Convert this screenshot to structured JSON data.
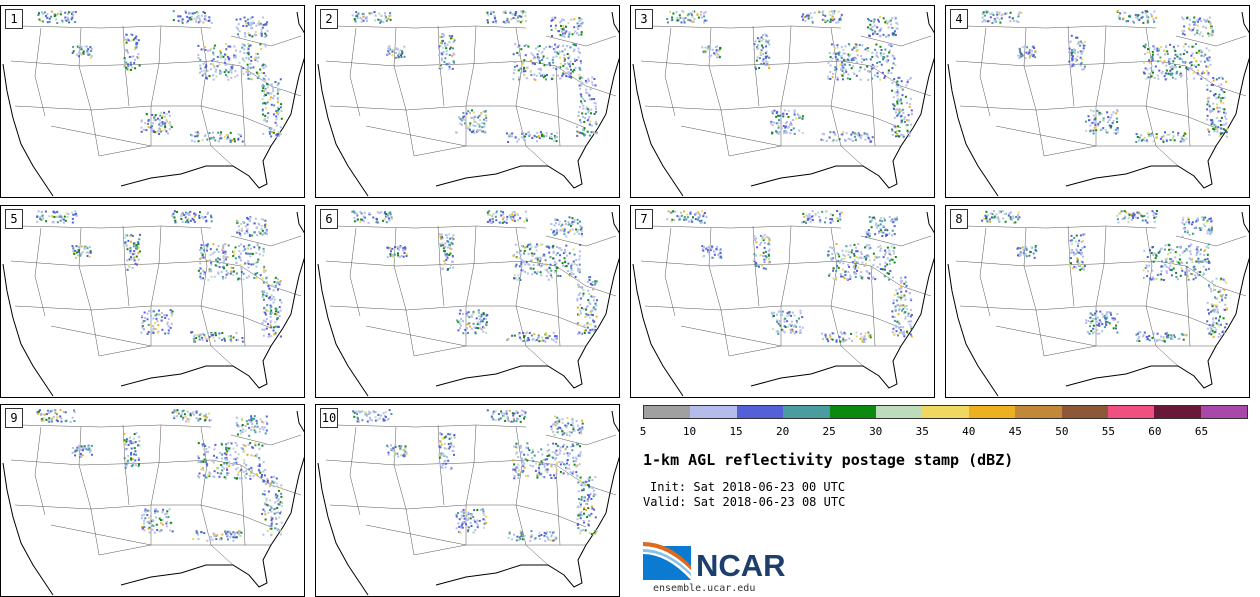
{
  "panels": [
    {
      "label": "1"
    },
    {
      "label": "2"
    },
    {
      "label": "3"
    },
    {
      "label": "4"
    },
    {
      "label": "5"
    },
    {
      "label": "6"
    },
    {
      "label": "7"
    },
    {
      "label": "8"
    },
    {
      "label": "9"
    },
    {
      "label": "10"
    }
  ],
  "colorbar": {
    "colors": [
      "#a0a0a0",
      "#b4bcec",
      "#5460d8",
      "#4a9ca0",
      "#0c8a10",
      "#bcdcbc",
      "#f0d860",
      "#ecb020",
      "#c08838",
      "#8c5838",
      "#f05080",
      "#6a1838",
      "#a848a8"
    ],
    "ticks": [
      "5",
      "10",
      "15",
      "20",
      "25",
      "30",
      "35",
      "40",
      "45",
      "50",
      "55",
      "60",
      "65"
    ]
  },
  "title": "1-km AGL reflectivity postage stamp (dBZ)",
  "init": "Init: Sat 2018-06-23 00 UTC",
  "valid": "Valid: Sat 2018-06-23 08 UTC",
  "logo": {
    "name": "NCAR",
    "url": "ensemble.ucar.edu"
  }
}
